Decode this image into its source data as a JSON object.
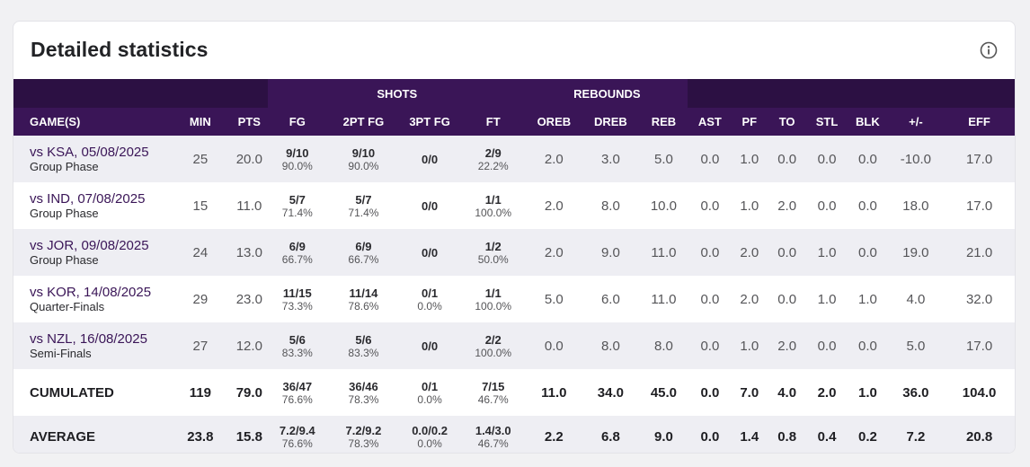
{
  "title": "Detailed statistics",
  "groups": {
    "shots": "SHOTS",
    "rebounds": "REBOUNDS"
  },
  "columns": {
    "games": "GAME(S)",
    "min": "MIN",
    "pts": "PTS",
    "fg": "FG",
    "fg2": "2PT FG",
    "fg3": "3PT FG",
    "ft": "FT",
    "oreb": "OREB",
    "dreb": "DREB",
    "reb": "REB",
    "ast": "AST",
    "pf": "PF",
    "to": "TO",
    "stl": "STL",
    "blk": "BLK",
    "pm": "+/-",
    "eff": "EFF"
  },
  "games": [
    {
      "name": "vs KSA, 05/08/2025",
      "phase": "Group Phase",
      "min": "25",
      "pts": "20.0",
      "fg": "9/10",
      "fg_pct": "90.0%",
      "fg2": "9/10",
      "fg2_pct": "90.0%",
      "fg3": "0/0",
      "fg3_pct": "",
      "ft": "2/9",
      "ft_pct": "22.2%",
      "oreb": "2.0",
      "dreb": "3.0",
      "reb": "5.0",
      "ast": "0.0",
      "pf": "1.0",
      "to": "0.0",
      "stl": "0.0",
      "blk": "0.0",
      "pm": "-10.0",
      "eff": "17.0"
    },
    {
      "name": "vs IND, 07/08/2025",
      "phase": "Group Phase",
      "min": "15",
      "pts": "11.0",
      "fg": "5/7",
      "fg_pct": "71.4%",
      "fg2": "5/7",
      "fg2_pct": "71.4%",
      "fg3": "0/0",
      "fg3_pct": "",
      "ft": "1/1",
      "ft_pct": "100.0%",
      "oreb": "2.0",
      "dreb": "8.0",
      "reb": "10.0",
      "ast": "0.0",
      "pf": "1.0",
      "to": "2.0",
      "stl": "0.0",
      "blk": "0.0",
      "pm": "18.0",
      "eff": "17.0"
    },
    {
      "name": "vs JOR, 09/08/2025",
      "phase": "Group Phase",
      "min": "24",
      "pts": "13.0",
      "fg": "6/9",
      "fg_pct": "66.7%",
      "fg2": "6/9",
      "fg2_pct": "66.7%",
      "fg3": "0/0",
      "fg3_pct": "",
      "ft": "1/2",
      "ft_pct": "50.0%",
      "oreb": "2.0",
      "dreb": "9.0",
      "reb": "11.0",
      "ast": "0.0",
      "pf": "2.0",
      "to": "0.0",
      "stl": "1.0",
      "blk": "0.0",
      "pm": "19.0",
      "eff": "21.0"
    },
    {
      "name": "vs KOR, 14/08/2025",
      "phase": "Quarter-Finals",
      "min": "29",
      "pts": "23.0",
      "fg": "11/15",
      "fg_pct": "73.3%",
      "fg2": "11/14",
      "fg2_pct": "78.6%",
      "fg3": "0/1",
      "fg3_pct": "0.0%",
      "ft": "1/1",
      "ft_pct": "100.0%",
      "oreb": "5.0",
      "dreb": "6.0",
      "reb": "11.0",
      "ast": "0.0",
      "pf": "2.0",
      "to": "0.0",
      "stl": "1.0",
      "blk": "1.0",
      "pm": "4.0",
      "eff": "32.0"
    },
    {
      "name": "vs NZL, 16/08/2025",
      "phase": "Semi-Finals",
      "min": "27",
      "pts": "12.0",
      "fg": "5/6",
      "fg_pct": "83.3%",
      "fg2": "5/6",
      "fg2_pct": "83.3%",
      "fg3": "0/0",
      "fg3_pct": "",
      "ft": "2/2",
      "ft_pct": "100.0%",
      "oreb": "0.0",
      "dreb": "8.0",
      "reb": "8.0",
      "ast": "0.0",
      "pf": "1.0",
      "to": "2.0",
      "stl": "0.0",
      "blk": "0.0",
      "pm": "5.0",
      "eff": "17.0"
    }
  ],
  "cumulated": {
    "label": "CUMULATED",
    "min": "119",
    "pts": "79.0",
    "fg": "36/47",
    "fg_pct": "76.6%",
    "fg2": "36/46",
    "fg2_pct": "78.3%",
    "fg3": "0/1",
    "fg3_pct": "0.0%",
    "ft": "7/15",
    "ft_pct": "46.7%",
    "oreb": "11.0",
    "dreb": "34.0",
    "reb": "45.0",
    "ast": "0.0",
    "pf": "7.0",
    "to": "4.0",
    "stl": "2.0",
    "blk": "1.0",
    "pm": "36.0",
    "eff": "104.0"
  },
  "average": {
    "label": "AVERAGE",
    "min": "23.8",
    "pts": "15.8",
    "fg": "7.2/9.4",
    "fg_pct": "76.6%",
    "fg2": "7.2/9.2",
    "fg2_pct": "78.3%",
    "fg3": "0.0/0.2",
    "fg3_pct": "0.0%",
    "ft": "1.4/3.0",
    "ft_pct": "46.7%",
    "oreb": "2.2",
    "dreb": "6.8",
    "reb": "9.0",
    "ast": "0.0",
    "pf": "1.4",
    "to": "0.8",
    "stl": "0.4",
    "blk": "0.2",
    "pm": "7.2",
    "eff": "20.8"
  },
  "icons": {
    "info": "info-icon"
  },
  "colors": {
    "header_dark": "#2c1043",
    "header": "#3a1557",
    "alt_row": "#eeeef3",
    "game_link": "#3a1557"
  }
}
